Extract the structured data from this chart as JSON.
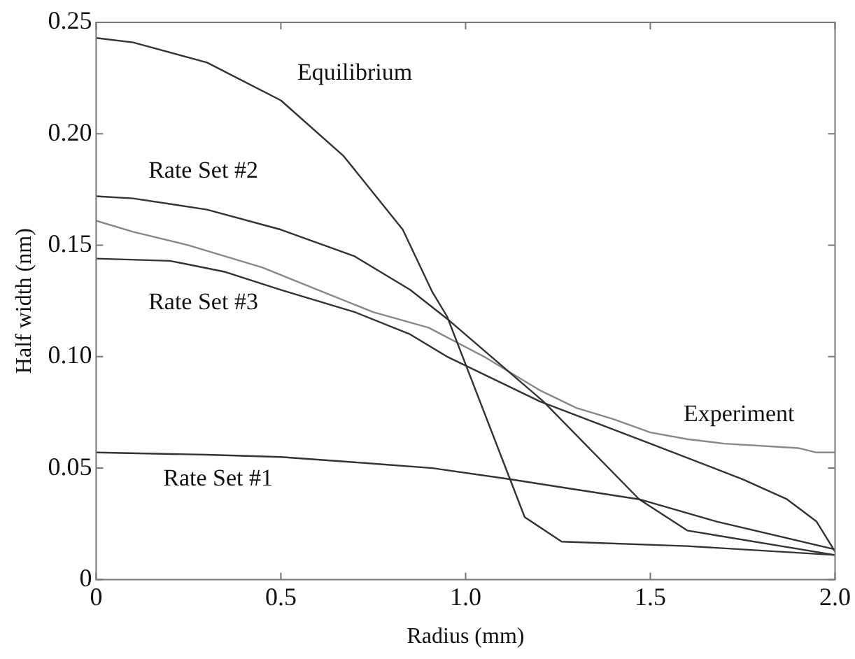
{
  "chart_data": {
    "type": "line",
    "xlabel": "Radius (mm)",
    "ylabel": "Half width (nm)",
    "xlim": [
      0,
      2.0
    ],
    "xticks": [
      0,
      0.5,
      {
        "value": 1,
        "label": "1.0"
      },
      1.5,
      {
        "value": 2,
        "label": "2.0"
      }
    ],
    "ylim": [
      0,
      0.25
    ],
    "yticks": [
      0,
      0.05,
      {
        "value": 0.1,
        "label": "0.10"
      },
      0.15,
      {
        "value": 0.2,
        "label": "0.20"
      },
      0.25
    ],
    "grid": false,
    "legend": false,
    "marker": "none",
    "line_style": "solid",
    "series": [
      {
        "name": "Equilibrium",
        "color": "#333333",
        "x": [
          0,
          0.1,
          0.3,
          0.5,
          0.67,
          0.83,
          0.91,
          0.95,
          1.16,
          1.26,
          1.6,
          2.0
        ],
        "values": [
          0.243,
          0.241,
          0.232,
          0.215,
          0.19,
          0.157,
          0.129,
          0.118,
          0.028,
          0.017,
          0.015,
          0.011
        ]
      },
      {
        "name": "Rate Set #2",
        "color": "#333333",
        "x": [
          0,
          0.1,
          0.3,
          0.5,
          0.7,
          0.85,
          0.95,
          1.21,
          1.47,
          1.6,
          2.0
        ],
        "values": [
          0.172,
          0.171,
          0.166,
          0.157,
          0.145,
          0.13,
          0.117,
          0.08,
          0.036,
          0.022,
          0.011
        ]
      },
      {
        "name": "Rate Set #3",
        "color": "#333333",
        "x": [
          0,
          0.2,
          0.35,
          0.5,
          0.7,
          0.85,
          0.95,
          1.2,
          1.5,
          1.75,
          1.87,
          1.95,
          2.0
        ],
        "values": [
          0.144,
          0.143,
          0.138,
          0.13,
          0.12,
          0.11,
          0.1,
          0.08,
          0.061,
          0.045,
          0.036,
          0.026,
          0.0125
        ]
      },
      {
        "name": "Experiment",
        "color": "#888888",
        "x": [
          0,
          0.1,
          0.25,
          0.45,
          0.6,
          0.75,
          0.9,
          1.05,
          1.2,
          1.3,
          1.4,
          1.5,
          1.6,
          1.7,
          1.9,
          1.95,
          2.0
        ],
        "values": [
          0.161,
          0.156,
          0.15,
          0.14,
          0.13,
          0.12,
          0.113,
          0.1,
          0.085,
          0.077,
          0.072,
          0.066,
          0.063,
          0.061,
          0.059,
          0.057,
          0.057
        ]
      },
      {
        "name": "Rate Set #1",
        "color": "#333333",
        "x": [
          0,
          0.3,
          0.5,
          0.75,
          0.91,
          1.12,
          1.47,
          1.68,
          2.0
        ],
        "values": [
          0.057,
          0.056,
          0.055,
          0.052,
          0.05,
          0.045,
          0.036,
          0.026,
          0.0135
        ]
      }
    ]
  }
}
